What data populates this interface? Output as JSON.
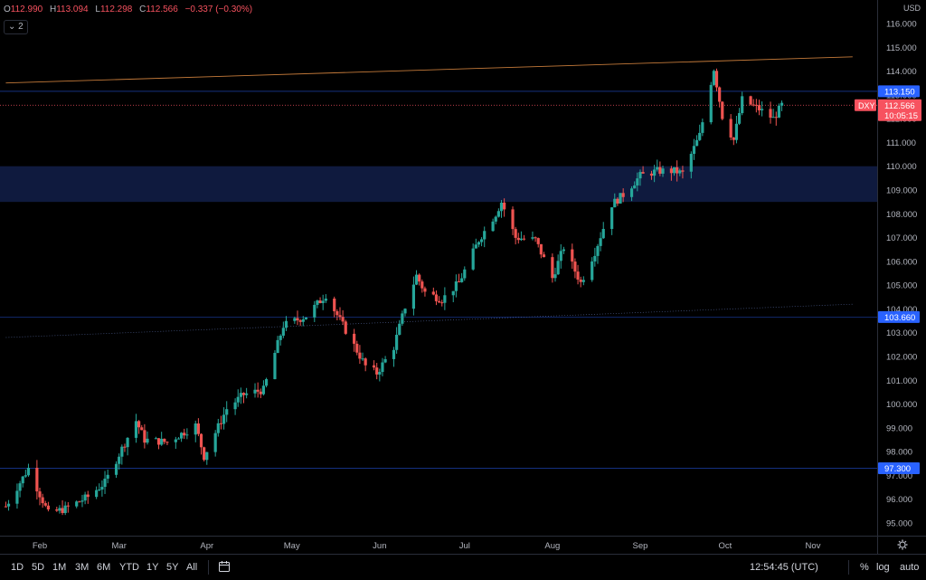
{
  "header": {
    "ohlc": [
      {
        "key": "O",
        "value": "112.990"
      },
      {
        "key": "H",
        "value": "113.094"
      },
      {
        "key": "L",
        "value": "112.298"
      },
      {
        "key": "C",
        "value": "112.566"
      },
      {
        "key": "",
        "value": "−0.337 (−0.30%)"
      }
    ],
    "collapse_label": "⌄ 2",
    "currency": "USD"
  },
  "chart_data": {
    "type": "candlestick",
    "symbol": "DXY",
    "y_ticks": [
      "116.000",
      "115.000",
      "114.000",
      "113.000",
      "112.000",
      "111.000",
      "110.000",
      "109.000",
      "108.000",
      "107.000",
      "106.000",
      "105.000",
      "104.000",
      "103.000",
      "102.000",
      "101.000",
      "100.000",
      "99.000",
      "98.000",
      "97.000",
      "96.000",
      "95.000"
    ],
    "ylim": [
      94.5,
      116.5
    ],
    "x_labels": [
      {
        "label": "Feb",
        "date": "2022-02-01"
      },
      {
        "label": "Mar",
        "date": "2022-03-01"
      },
      {
        "label": "Apr",
        "date": "2022-04-01"
      },
      {
        "label": "May",
        "date": "2022-05-01"
      },
      {
        "label": "Jun",
        "date": "2022-06-01"
      },
      {
        "label": "Jul",
        "date": "2022-07-01"
      },
      {
        "label": "Aug",
        "date": "2022-08-01"
      },
      {
        "label": "Sep",
        "date": "2022-09-01"
      },
      {
        "label": "Oct",
        "date": "2022-10-01"
      },
      {
        "label": "Nov",
        "date": "2022-11-01"
      }
    ],
    "price_path": [
      [
        "2022-01-20",
        95.7
      ],
      [
        "2022-01-28",
        97.3
      ],
      [
        "2022-02-04",
        95.4
      ],
      [
        "2022-02-10",
        95.6
      ],
      [
        "2022-02-18",
        96.1
      ],
      [
        "2022-02-24",
        96.7
      ],
      [
        "2022-03-04",
        98.6
      ],
      [
        "2022-03-07",
        99.3
      ],
      [
        "2022-03-10",
        98.5
      ],
      [
        "2022-03-18",
        98.4
      ],
      [
        "2022-03-28",
        99.1
      ],
      [
        "2022-03-31",
        97.8
      ],
      [
        "2022-04-08",
        99.8
      ],
      [
        "2022-04-14",
        100.4
      ],
      [
        "2022-04-21",
        100.6
      ],
      [
        "2022-04-28",
        103.3
      ],
      [
        "2022-05-06",
        103.7
      ],
      [
        "2022-05-13",
        104.6
      ],
      [
        "2022-05-20",
        103.1
      ],
      [
        "2022-05-27",
        101.6
      ],
      [
        "2022-05-31",
        101.3
      ],
      [
        "2022-06-06",
        102.4
      ],
      [
        "2022-06-10",
        104.1
      ],
      [
        "2022-06-14",
        105.4
      ],
      [
        "2022-06-17",
        104.7
      ],
      [
        "2022-06-23",
        104.4
      ],
      [
        "2022-06-29",
        105.1
      ],
      [
        "2022-07-06",
        106.9
      ],
      [
        "2022-07-12",
        108.0
      ],
      [
        "2022-07-14",
        108.5
      ],
      [
        "2022-07-19",
        107.0
      ],
      [
        "2022-07-26",
        106.9
      ],
      [
        "2022-08-01",
        105.3
      ],
      [
        "2022-08-05",
        106.6
      ],
      [
        "2022-08-11",
        105.1
      ],
      [
        "2022-08-16",
        106.4
      ],
      [
        "2022-08-22",
        108.4
      ],
      [
        "2022-08-26",
        108.8
      ],
      [
        "2022-09-01",
        109.6
      ],
      [
        "2022-09-07",
        109.8
      ],
      [
        "2022-09-13",
        109.8
      ],
      [
        "2022-09-16",
        109.7
      ],
      [
        "2022-09-22",
        111.3
      ],
      [
        "2022-09-27",
        114.1
      ],
      [
        "2022-09-30",
        112.1
      ],
      [
        "2022-10-04",
        111.1
      ],
      [
        "2022-10-07",
        112.8
      ],
      [
        "2022-10-13",
        112.4
      ],
      [
        "2022-10-18",
        112.0
      ],
      [
        "2022-10-21",
        112.566
      ]
    ],
    "supply_zone": {
      "from": 108.5,
      "to": 110.0
    },
    "horizontal_lines": [
      {
        "price": 113.15,
        "label": "113.150",
        "color": "#2962ff"
      },
      {
        "price": 103.66,
        "label": "103.660",
        "color": "#2962ff"
      },
      {
        "price": 97.3,
        "label": "97.300",
        "color": "#2962ff"
      }
    ],
    "trend_lines": [
      {
        "color": "#c47a3a",
        "from": [
          "2022-01-20",
          113.5
        ],
        "to": [
          "2022-11-15",
          114.6
        ]
      },
      {
        "color": "#4a5a8a",
        "from": [
          "2022-01-20",
          102.8
        ],
        "to": [
          "2022-11-15",
          104.2
        ]
      }
    ],
    "last_price": {
      "symbol": "DXY",
      "value": "112.566",
      "countdown": "10:05:15",
      "price": 112.566,
      "color": "#f7525f"
    },
    "up_color": "#26a69a",
    "down_color": "#ef5350"
  },
  "toolbar": {
    "timeframes": [
      "1D",
      "5D",
      "1M",
      "3M",
      "6M",
      "YTD",
      "1Y",
      "5Y",
      "All"
    ],
    "clock": "12:54:45 (UTC)",
    "percent": "%",
    "log": "log",
    "auto": "auto"
  }
}
